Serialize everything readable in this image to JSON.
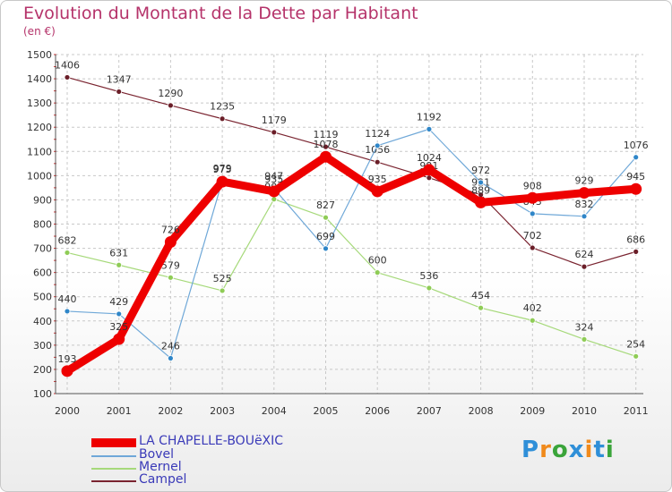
{
  "title": "Evolution du Montant de la Dette par Habitant",
  "subtitle": "(en €)",
  "brand": "Proxiti",
  "colors": {
    "title": "#b5336a",
    "grid": "#c8c8c8",
    "legend_text": "#3a3ab8",
    "brand_p": "#2f8fd8",
    "brand_r": "#f08a1c",
    "brand_o": "#3aa43a",
    "brand_x": "#2f8fd8",
    "brand_i": "#f08a1c",
    "brand_t": "#2f8fd8",
    "brand_i2": "#3aa43a"
  },
  "chart_data": {
    "type": "line",
    "title": "Evolution du Montant de la Dette par Habitant",
    "ylabel": "(en €)",
    "xlabel": "",
    "ylim": [
      100,
      1500
    ],
    "yticks": [
      100,
      200,
      300,
      400,
      500,
      600,
      700,
      800,
      900,
      1000,
      1100,
      1200,
      1300,
      1400,
      1500
    ],
    "grid": true,
    "legend_position": "bottom-left",
    "categories": [
      "2000",
      "2001",
      "2002",
      "2003",
      "2004",
      "2005",
      "2006",
      "2007",
      "2008",
      "2009",
      "2010",
      "2011"
    ],
    "series": [
      {
        "name": "Campel",
        "color": "#7a2430",
        "dot": "#6a1e28",
        "width": 1.2,
        "values": [
          1406,
          1347,
          1290,
          1235,
          1179,
          1119,
          1056,
          991,
          921,
          702,
          624,
          686
        ]
      },
      {
        "name": "Mernel",
        "color": "#a6d97a",
        "dot": "#8fcc56",
        "width": 1.2,
        "values": [
          682,
          631,
          579,
          525,
          903,
          827,
          600,
          536,
          454,
          402,
          324,
          254
        ]
      },
      {
        "name": "Bovel",
        "color": "#6fa8d8",
        "dot": "#2f86c8",
        "width": 1.2,
        "values": [
          440,
          429,
          246,
          979,
          947,
          699,
          1124,
          1192,
          972,
          843,
          832,
          1076
        ]
      },
      {
        "name": "LA CHAPELLE-BOUëXIC",
        "color": "#ee0000",
        "dot": "#ee0000",
        "width": 9,
        "values": [
          193,
          325,
          726,
          975,
          935,
          1078,
          935,
          1024,
          889,
          908,
          929,
          945
        ]
      }
    ],
    "legend_order": [
      "LA CHAPELLE-BOUëXIC",
      "Bovel",
      "Mernel",
      "Campel"
    ]
  }
}
